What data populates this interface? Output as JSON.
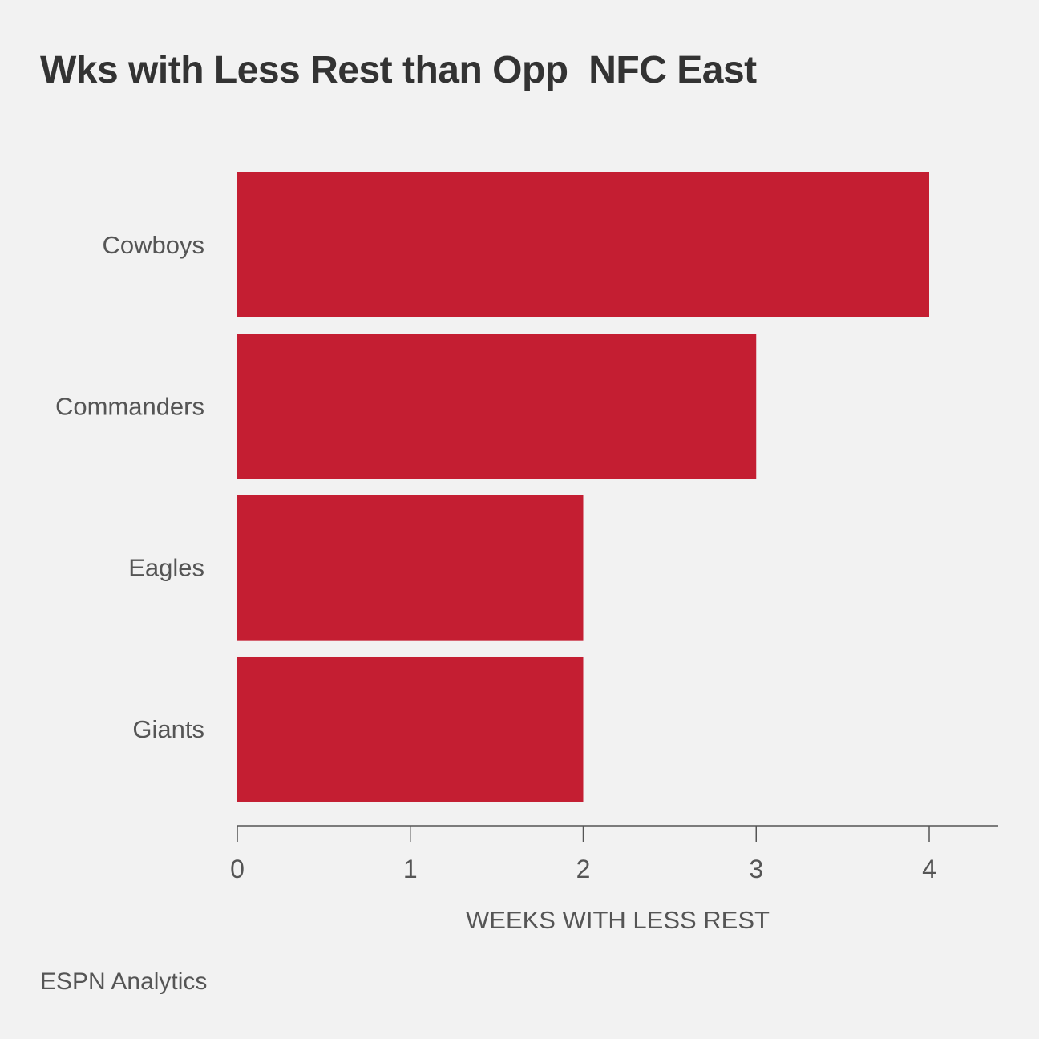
{
  "chart_data": {
    "type": "bar",
    "orientation": "horizontal",
    "title": "Wks with Less Rest than Opp  NFC East",
    "categories": [
      "Cowboys",
      "Commanders",
      "Eagles",
      "Giants"
    ],
    "values": [
      4,
      3,
      2,
      2
    ],
    "xlabel": "WEEKS WITH LESS REST",
    "ylabel": "",
    "xlim": [
      0,
      4.4
    ],
    "xticks": [
      "0",
      "1",
      "2",
      "3",
      "4"
    ],
    "grid": false,
    "bar_color": "#c41e32",
    "source": "ESPN Analytics"
  }
}
